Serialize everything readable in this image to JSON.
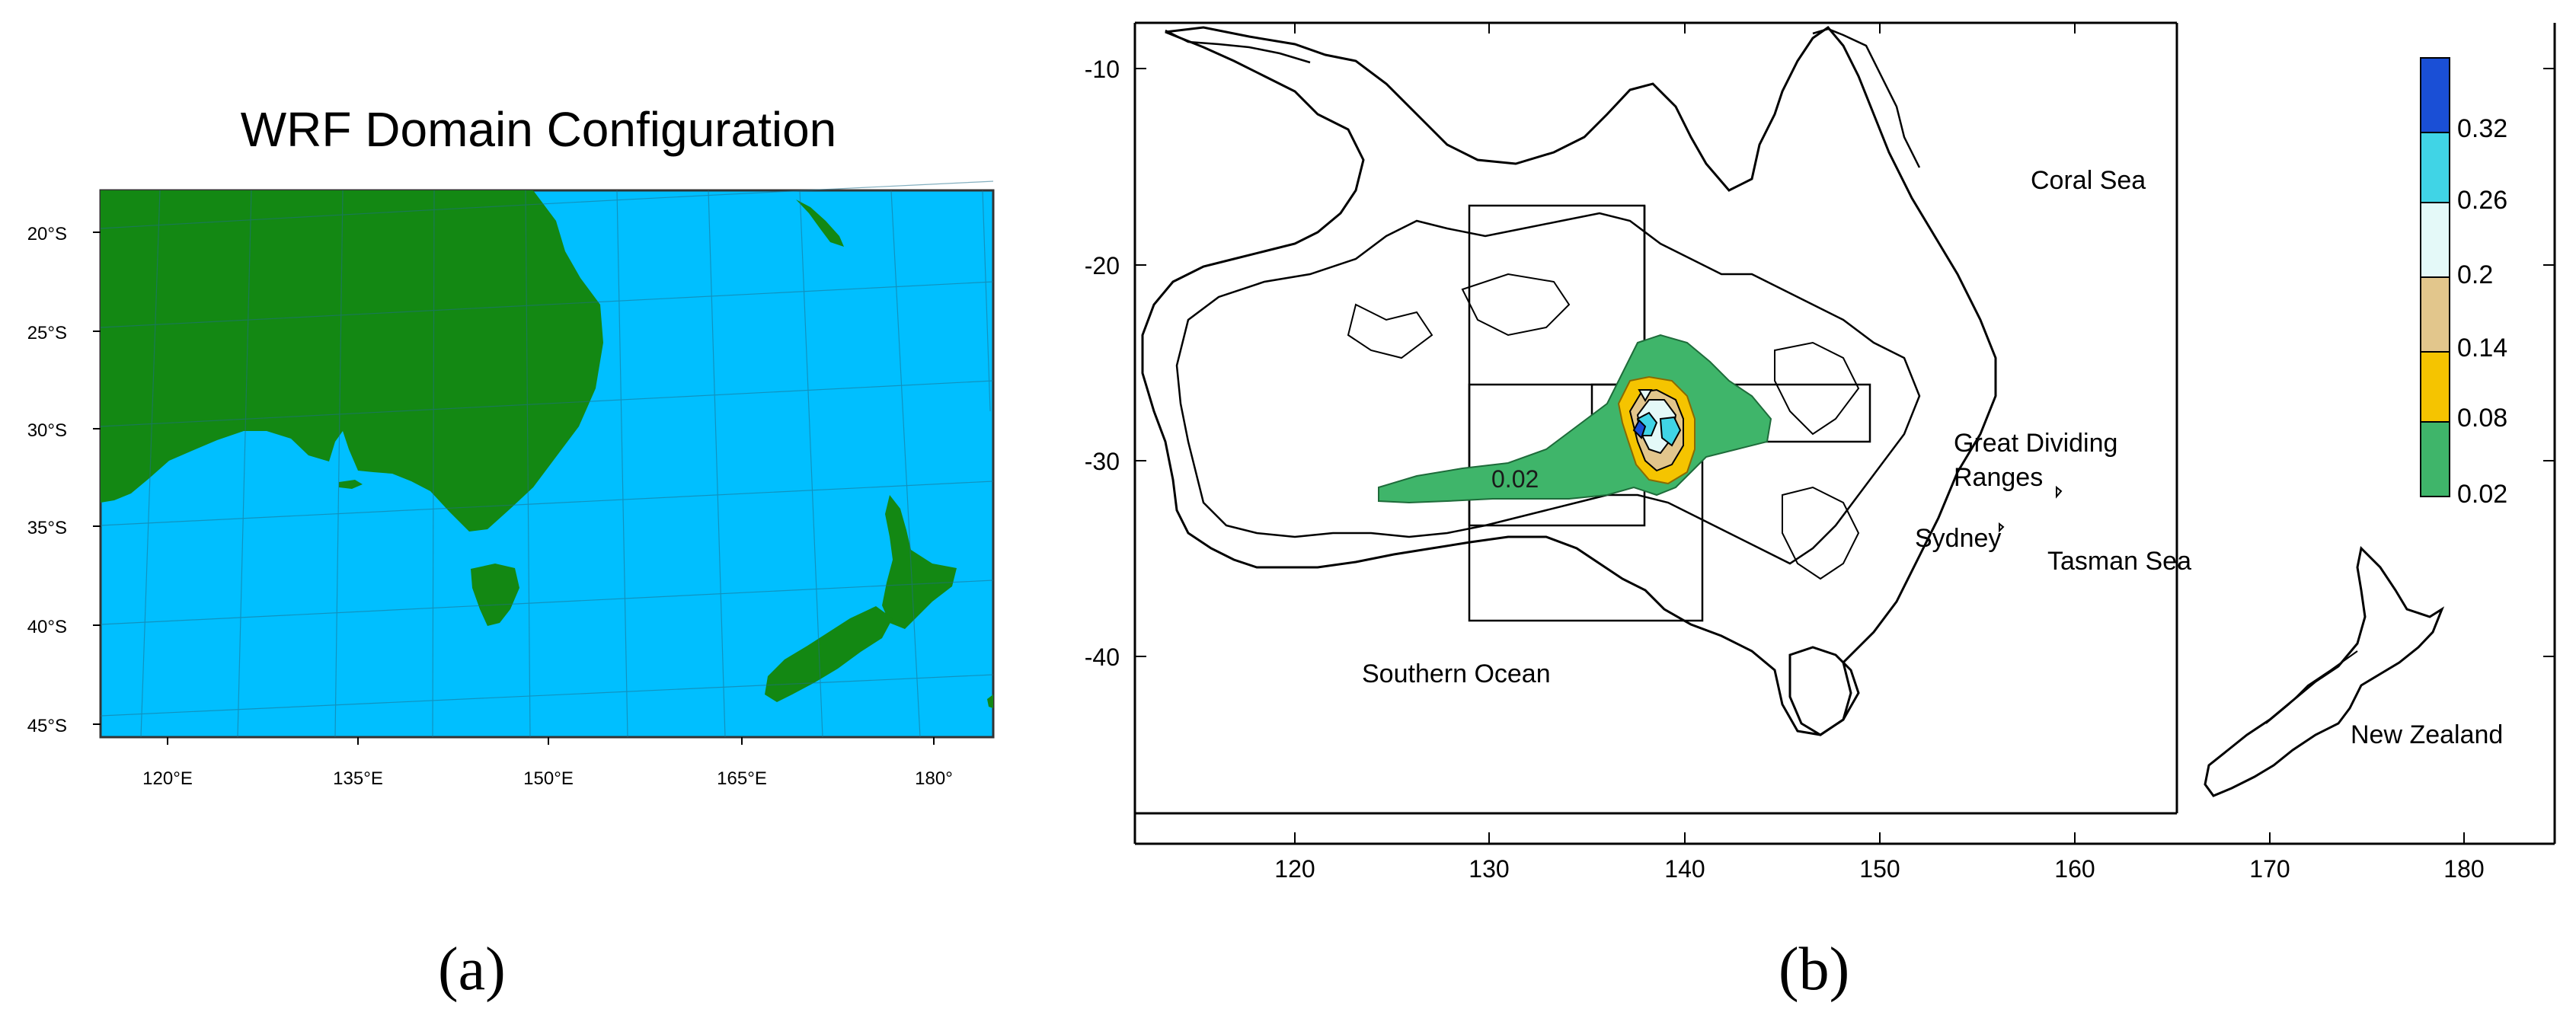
{
  "panel_a": {
    "title": "WRF Domain Configuration",
    "lat_labels": [
      "20°S",
      "25°S",
      "30°S",
      "35°S",
      "40°S",
      "45°S"
    ],
    "lon_labels": [
      "120°E",
      "135°E",
      "150°E",
      "165°E",
      "180°"
    ],
    "caption": "(a)",
    "colors": {
      "ocean": "#00bfff",
      "land": "#138813"
    }
  },
  "panel_b": {
    "y_tick_labels": [
      "-10",
      "-20",
      "-30",
      "-40"
    ],
    "x_tick_labels": [
      "120",
      "130",
      "140",
      "150",
      "160",
      "170",
      "180"
    ],
    "place_labels": {
      "coral_sea": "Coral Sea",
      "great_dividing_1": "Great Dividing",
      "great_dividing_2": "Ranges",
      "sydney": "Sydney",
      "tasman_sea": "Tasman Sea",
      "southern_ocean": "Southern Ocean",
      "new_zealand": "New Zealand"
    },
    "contour_label": "0.02",
    "colorbar": {
      "labels": [
        "0.32",
        "0.26",
        "0.2",
        "0.14",
        "0.08",
        "0.02"
      ],
      "colors": [
        "#1a4fd6",
        "#40d4e6",
        "#e4f9f8",
        "#e2c68c",
        "#f5c400",
        "#3fb56a"
      ]
    },
    "caption": "(b)"
  }
}
